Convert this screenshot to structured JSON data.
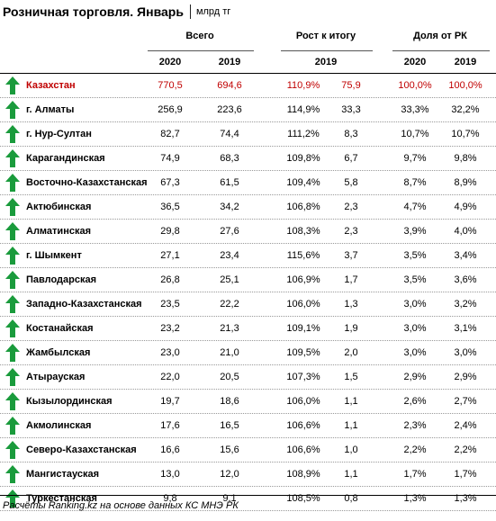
{
  "title": {
    "main": "Розничная торговля. Январь",
    "unit": "млрд тг"
  },
  "headers": {
    "group_total": "Всего",
    "group_growth": "Рост к итогу",
    "group_share": "Доля от РК",
    "total_2020": "2020",
    "total_2019": "2019",
    "growth_2019": "2019",
    "share_2020": "2020",
    "share_2019": "2019"
  },
  "colors": {
    "arrow": "#1a9b3c",
    "highlight": "#c00000"
  },
  "icons": {
    "arrow": "up-arrow-icon"
  },
  "rows": [
    {
      "name": "Казахстан",
      "total_2020": "770,5",
      "total_2019": "694,6",
      "growth_pct": "110,9%",
      "growth_val": "75,9",
      "share_2020": "100,0%",
      "share_2019": "100,0%",
      "highlight": true
    },
    {
      "name": "г. Алматы",
      "total_2020": "256,9",
      "total_2019": "223,6",
      "growth_pct": "114,9%",
      "growth_val": "33,3",
      "share_2020": "33,3%",
      "share_2019": "32,2%"
    },
    {
      "name": "г. Нур-Султан",
      "total_2020": "82,7",
      "total_2019": "74,4",
      "growth_pct": "111,2%",
      "growth_val": "8,3",
      "share_2020": "10,7%",
      "share_2019": "10,7%"
    },
    {
      "name": "Карагандинская",
      "total_2020": "74,9",
      "total_2019": "68,3",
      "growth_pct": "109,8%",
      "growth_val": "6,7",
      "share_2020": "9,7%",
      "share_2019": "9,8%"
    },
    {
      "name": "Восточно-Казахстанская",
      "total_2020": "67,3",
      "total_2019": "61,5",
      "growth_pct": "109,4%",
      "growth_val": "5,8",
      "share_2020": "8,7%",
      "share_2019": "8,9%"
    },
    {
      "name": "Актюбинская",
      "total_2020": "36,5",
      "total_2019": "34,2",
      "growth_pct": "106,8%",
      "growth_val": "2,3",
      "share_2020": "4,7%",
      "share_2019": "4,9%"
    },
    {
      "name": "Алматинская",
      "total_2020": "29,8",
      "total_2019": "27,6",
      "growth_pct": "108,3%",
      "growth_val": "2,3",
      "share_2020": "3,9%",
      "share_2019": "4,0%"
    },
    {
      "name": "г. Шымкент",
      "total_2020": "27,1",
      "total_2019": "23,4",
      "growth_pct": "115,6%",
      "growth_val": "3,7",
      "share_2020": "3,5%",
      "share_2019": "3,4%"
    },
    {
      "name": "Павлодарская",
      "total_2020": "26,8",
      "total_2019": "25,1",
      "growth_pct": "106,9%",
      "growth_val": "1,7",
      "share_2020": "3,5%",
      "share_2019": "3,6%"
    },
    {
      "name": "Западно-Казахстанская",
      "total_2020": "23,5",
      "total_2019": "22,2",
      "growth_pct": "106,0%",
      "growth_val": "1,3",
      "share_2020": "3,0%",
      "share_2019": "3,2%"
    },
    {
      "name": "Костанайская",
      "total_2020": "23,2",
      "total_2019": "21,3",
      "growth_pct": "109,1%",
      "growth_val": "1,9",
      "share_2020": "3,0%",
      "share_2019": "3,1%"
    },
    {
      "name": "Жамбылская",
      "total_2020": "23,0",
      "total_2019": "21,0",
      "growth_pct": "109,5%",
      "growth_val": "2,0",
      "share_2020": "3,0%",
      "share_2019": "3,0%"
    },
    {
      "name": "Атырауская",
      "total_2020": "22,0",
      "total_2019": "20,5",
      "growth_pct": "107,3%",
      "growth_val": "1,5",
      "share_2020": "2,9%",
      "share_2019": "2,9%"
    },
    {
      "name": "Кызылординская",
      "total_2020": "19,7",
      "total_2019": "18,6",
      "growth_pct": "106,0%",
      "growth_val": "1,1",
      "share_2020": "2,6%",
      "share_2019": "2,7%"
    },
    {
      "name": "Акмолинская",
      "total_2020": "17,6",
      "total_2019": "16,5",
      "growth_pct": "106,6%",
      "growth_val": "1,1",
      "share_2020": "2,3%",
      "share_2019": "2,4%"
    },
    {
      "name": "Северо-Казахстанская",
      "total_2020": "16,6",
      "total_2019": "15,6",
      "growth_pct": "106,6%",
      "growth_val": "1,0",
      "share_2020": "2,2%",
      "share_2019": "2,2%"
    },
    {
      "name": "Мангистауская",
      "total_2020": "13,0",
      "total_2019": "12,0",
      "growth_pct": "108,9%",
      "growth_val": "1,1",
      "share_2020": "1,7%",
      "share_2019": "1,7%"
    },
    {
      "name": "Туркестанская",
      "total_2020": "9,8",
      "total_2019": "9,1",
      "growth_pct": "108,5%",
      "growth_val": "0,8",
      "share_2020": "1,3%",
      "share_2019": "1,3%"
    }
  ],
  "footer": "Расчёты Ranking.kz на основе данных КС МНЭ РК"
}
